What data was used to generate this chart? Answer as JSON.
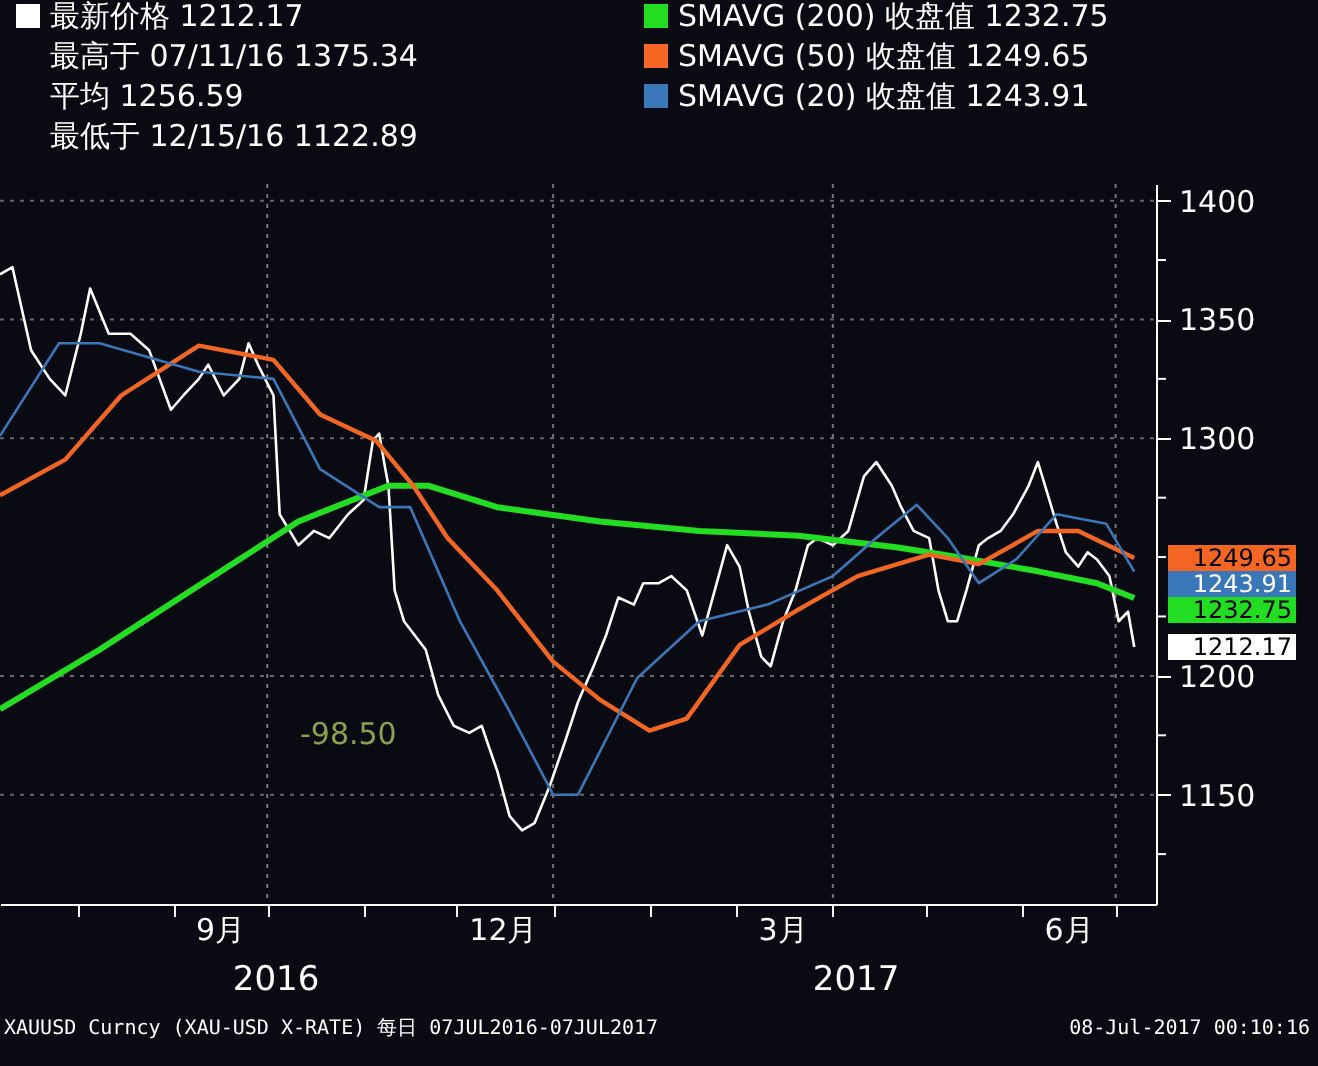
{
  "chart_data": {
    "type": "line",
    "legend": "top",
    "xlim": [
      "2016-07-07",
      "2017-07-14"
    ],
    "ylim": [
      1104,
      1407
    ],
    "xticks": [
      {
        "value": "2016-08-01",
        "label": null
      },
      {
        "value": "2016-09-01",
        "label": null
      },
      {
        "value": "2016-09-16",
        "label": "9月"
      },
      {
        "value": "2016-10-01",
        "label": null
      },
      {
        "value": "2016-11-01",
        "label": null
      },
      {
        "value": "2016-12-01",
        "label": null
      },
      {
        "value": "2016-12-16",
        "label": "12月"
      },
      {
        "value": "2017-01-01",
        "label": null
      },
      {
        "value": "2017-02-01",
        "label": null
      },
      {
        "value": "2017-03-01",
        "label": null
      },
      {
        "value": "2017-03-16",
        "label": "3月"
      },
      {
        "value": "2017-04-01",
        "label": null
      },
      {
        "value": "2017-05-01",
        "label": null
      },
      {
        "value": "2017-06-01",
        "label": null
      },
      {
        "value": "2017-06-16",
        "label": "6月"
      },
      {
        "value": "2017-07-01",
        "label": null
      }
    ],
    "yticks": [
      1400,
      {
        "value": 1375,
        "label": null
      },
      1350,
      {
        "value": 1325,
        "label": null
      },
      1300,
      {
        "value": 1275,
        "label": null
      },
      {
        "value": 1250,
        "label": null
      },
      {
        "value": 1225,
        "label": null
      },
      1200,
      {
        "value": 1175,
        "label": null
      },
      1150,
      {
        "value": 1125,
        "label": null
      }
    ],
    "grid": "y",
    "ref_lines": [
      {
        "axis": "x",
        "value": "2016-10-01",
        "color": "#777777",
        "line_style": "dotted"
      },
      {
        "axis": "x",
        "value": "2017-01-01",
        "color": "#777777",
        "line_style": "dotted"
      },
      {
        "axis": "x",
        "value": "2017-04-01",
        "color": "#777777",
        "line_style": "dotted"
      },
      {
        "axis": "x",
        "value": "2017-07-01",
        "color": "#777777",
        "line_style": "dotted"
      }
    ],
    "series": [
      {
        "name": "最新价格 1212.17",
        "color": "#ffffff",
        "x": [
          "2016-07-07",
          "2016-07-11",
          "2016-07-17",
          "2016-07-23",
          "2016-07-28",
          "2016-08-02",
          "2016-08-05",
          "2016-08-11",
          "2016-08-18",
          "2016-08-24",
          "2016-08-31",
          "2016-09-04",
          "2016-09-09",
          "2016-09-12",
          "2016-09-17",
          "2016-09-22",
          "2016-09-25",
          "2016-09-28",
          "2016-10-03",
          "2016-10-05",
          "2016-10-11",
          "2016-10-16",
          "2016-10-21",
          "2016-10-27",
          "2016-11-01",
          "2016-11-04",
          "2016-11-06",
          "2016-11-08",
          "2016-11-09",
          "2016-11-11",
          "2016-11-14",
          "2016-11-21",
          "2016-11-25",
          "2016-11-30",
          "2016-12-05",
          "2016-12-09",
          "2016-12-14",
          "2016-12-18",
          "2016-12-22",
          "2016-12-26",
          "2016-12-31",
          "2017-01-05",
          "2017-01-09",
          "2017-01-14",
          "2017-01-18",
          "2017-01-22",
          "2017-01-27",
          "2017-01-30",
          "2017-02-04",
          "2017-02-08",
          "2017-02-13",
          "2017-02-18",
          "2017-02-22",
          "2017-02-26",
          "2017-03-02",
          "2017-03-05",
          "2017-03-09",
          "2017-03-12",
          "2017-03-16",
          "2017-03-20",
          "2017-03-24",
          "2017-03-27",
          "2017-04-01",
          "2017-04-06",
          "2017-04-11",
          "2017-04-15",
          "2017-04-20",
          "2017-04-23",
          "2017-04-27",
          "2017-05-02",
          "2017-05-05",
          "2017-05-08",
          "2017-05-11",
          "2017-05-14",
          "2017-05-18",
          "2017-05-21",
          "2017-05-25",
          "2017-05-29",
          "2017-06-03",
          "2017-06-06",
          "2017-06-09",
          "2017-06-12",
          "2017-06-15",
          "2017-06-19",
          "2017-06-22",
          "2017-06-25",
          "2017-06-29",
          "2017-07-02",
          "2017-07-05",
          "2017-07-07"
        ],
        "values": [
          1369,
          1372,
          1337,
          1325,
          1318,
          1344,
          1363,
          1344,
          1344,
          1337,
          1312,
          1318,
          1325,
          1331,
          1318,
          1325,
          1340,
          1331,
          1318,
          1268,
          1255,
          1261,
          1258,
          1268,
          1274,
          1299,
          1302,
          1287,
          1280,
          1236,
          1223,
          1211,
          1192,
          1179,
          1176,
          1179,
          1160,
          1141,
          1135,
          1138,
          1154,
          1173,
          1189,
          1204,
          1217,
          1233,
          1230,
          1239,
          1239,
          1242,
          1236,
          1217,
          1236,
          1255,
          1246,
          1227,
          1208,
          1204,
          1223,
          1236,
          1255,
          1258,
          1255,
          1261,
          1284,
          1290,
          1280,
          1271,
          1261,
          1258,
          1236,
          1223,
          1223,
          1236,
          1255,
          1258,
          1261,
          1268,
          1280,
          1290,
          1277,
          1264,
          1252,
          1246,
          1252,
          1249,
          1242,
          1223,
          1227,
          1212.17
        ]
      },
      {
        "name": "SMAVG (200) 收盘值 1232.75",
        "color": "#22dd22",
        "x": [
          "2016-07-07",
          "2016-08-08",
          "2016-09-09",
          "2016-10-11",
          "2016-11-09",
          "2016-11-22",
          "2016-12-14",
          "2017-01-16",
          "2017-02-17",
          "2017-03-21",
          "2017-04-22",
          "2017-05-11",
          "2017-06-06",
          "2017-06-25",
          "2017-07-07"
        ],
        "values": [
          1186,
          1211,
          1238,
          1265,
          1280,
          1280,
          1271,
          1265,
          1261,
          1259,
          1254,
          1250,
          1244,
          1239,
          1232.75
        ]
      },
      {
        "name": "SMAVG (50) 收盘值 1249.65",
        "color": "#f26522",
        "x": [
          "2016-07-07",
          "2016-07-28",
          "2016-08-15",
          "2016-09-09",
          "2016-10-03",
          "2016-10-18",
          "2016-11-05",
          "2016-11-17",
          "2016-11-28",
          "2016-12-14",
          "2017-01-01",
          "2017-01-16",
          "2017-02-01",
          "2017-02-13",
          "2017-03-02",
          "2017-03-21",
          "2017-04-09",
          "2017-05-02",
          "2017-05-18",
          "2017-06-06",
          "2017-06-19",
          "2017-07-07"
        ],
        "values": [
          1276,
          1291,
          1318,
          1339,
          1333,
          1310,
          1299,
          1280,
          1258,
          1236,
          1206,
          1190,
          1177,
          1182,
          1213,
          1228,
          1242,
          1251,
          1247,
          1261,
          1261,
          1249.65
        ]
      },
      {
        "name": "SMAVG (20) 收盘值 1243.91",
        "color": "#3a77b8",
        "x": [
          "2016-07-07",
          "2016-07-26",
          "2016-08-08",
          "2016-09-09",
          "2016-10-03",
          "2016-10-18",
          "2016-11-06",
          "2016-11-16",
          "2016-12-02",
          "2016-12-18",
          "2017-01-01",
          "2017-01-09",
          "2017-01-28",
          "2017-02-17",
          "2017-03-11",
          "2017-04-01",
          "2017-04-15",
          "2017-04-28",
          "2017-05-08",
          "2017-05-18",
          "2017-05-30",
          "2017-06-12",
          "2017-06-28",
          "2017-07-07"
        ],
        "values": [
          1301,
          1340,
          1340,
          1328,
          1325,
          1287,
          1271,
          1271,
          1223,
          1185,
          1150,
          1150,
          1199,
          1223,
          1230,
          1242,
          1258,
          1272,
          1258,
          1239,
          1249,
          1268,
          1264,
          1243.91
        ]
      }
    ],
    "annotations": [
      "最高于 07/11/16 1375.34",
      "平均 1256.59",
      "最低于 12/15/16 1122.89",
      "-98.50",
      {
        "text": "1249.65",
        "x": "2017-07-07",
        "y": 1249.65
      },
      {
        "text": "1243.91",
        "x": "2017-07-07",
        "y": 1243.91
      },
      {
        "text": "1232.75",
        "x": "2017-07-07",
        "y": 1232.75
      },
      {
        "text": "1212.17",
        "x": "2017-07-07",
        "y": 1212.17
      },
      "2016",
      "2017",
      "XAUUSD Curncy (XAU-USD X-RATE)  每日 07JUL2016-07JUL2017",
      "08-Jul-2017 00:10:16"
    ]
  }
}
